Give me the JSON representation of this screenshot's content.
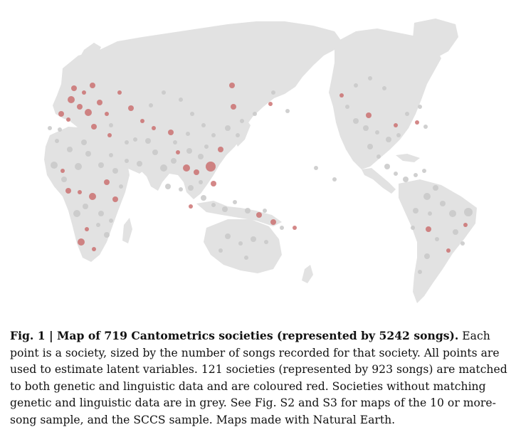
{
  "figure": {
    "caption_lead": "Fig. 1 | Map of 719 Cantometrics societies (represented by 5242 songs).",
    "caption_body": " Each point is a society, sized by the number of songs recorded for that society. All points are used to estimate latent variables. 121 societies (represented by 923 songs) are matched to both genetic and linguistic data and are coloured red. Societies without matching genetic and linguistic data are in grey. See Fig. S2 and S3 for maps of the 10 or more-song sample, and the SCCS sample. Maps made with Natural Earth."
  },
  "map": {
    "colors": {
      "land": "#e2e2e2",
      "grey_points": "#c8c8c8",
      "red_points": "#c96a6a"
    },
    "legend": []
  }
}
